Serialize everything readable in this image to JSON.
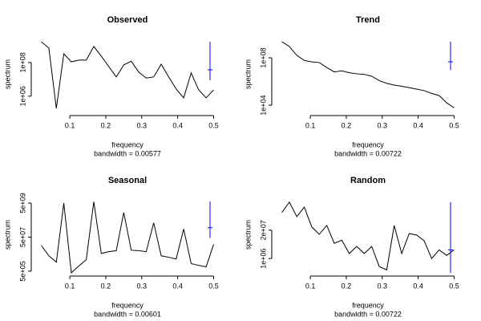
{
  "chart_data": [
    {
      "type": "line",
      "title": "Observed",
      "xlabel": "frequency",
      "ylabel": "spectrum",
      "subtitle": "bandwidth = 0.00577",
      "log_y": true,
      "color": "#000000",
      "x": [
        0.0208,
        0.0417,
        0.0625,
        0.0833,
        0.1042,
        0.125,
        0.1458,
        0.1667,
        0.1875,
        0.2083,
        0.2292,
        0.25,
        0.2708,
        0.2917,
        0.3125,
        0.3333,
        0.3542,
        0.375,
        0.3958,
        0.4167,
        0.4375,
        0.4583,
        0.4792,
        0.5
      ],
      "values": [
        1700000000,
        720000000,
        190000,
        330000000,
        110000000,
        140000000,
        140000000,
        900000000,
        240000000,
        58000000,
        14000000,
        72000000,
        120000000,
        27000000,
        12000000,
        14000000,
        80000000,
        14000000,
        2700000,
        800000,
        24000000,
        2400000,
        800000,
        2400000
      ],
      "xlim": [
        0.0017,
        0.519
      ],
      "xticks": [
        0.1,
        0.2,
        0.3,
        0.4,
        0.5
      ],
      "ylim": [
        110000,
        3700000000
      ],
      "yticks": [
        {
          "value": 1000000,
          "label": "1e+06"
        },
        {
          "value": 100000000,
          "label": "1e+08"
        }
      ],
      "ci": {
        "x": 0.49,
        "lower": 9000000,
        "center": 37000000,
        "upper": 1700000000,
        "color": "#0000ff"
      }
    },
    {
      "type": "line",
      "title": "Trend",
      "xlabel": "frequency",
      "ylabel": "spectrum",
      "subtitle": "bandwidth = 0.00722",
      "log_y": true,
      "color": "#000000",
      "x": [
        0.0208,
        0.0417,
        0.0625,
        0.0833,
        0.1042,
        0.125,
        0.1458,
        0.1667,
        0.1875,
        0.2083,
        0.2292,
        0.25,
        0.2708,
        0.2917,
        0.3125,
        0.3333,
        0.3542,
        0.375,
        0.3958,
        0.4167,
        0.4375,
        0.4583,
        0.4792,
        0.5
      ],
      "values": [
        2300000000,
        900000000,
        160000000,
        60000000,
        45000000,
        40000000,
        15000000,
        6500000,
        8000000,
        5500000,
        4500000,
        4000000,
        2800000,
        1200000,
        700000,
        500000,
        400000,
        300000,
        230000,
        170000,
        100000,
        65000,
        16000,
        6000
      ],
      "xlim": [
        0.0017,
        0.519
      ],
      "xticks": [
        0.1,
        0.2,
        0.3,
        0.4,
        0.5
      ],
      "ylim": [
        2500,
        6800000000
      ],
      "yticks": [
        {
          "value": 10000,
          "label": "1e+04"
        },
        {
          "value": 100000000,
          "label": "1e+08"
        }
      ],
      "ci": {
        "x": 0.49,
        "lower": 9600000,
        "center": 46000000,
        "upper": 2300000000,
        "color": "#0000ff"
      }
    },
    {
      "type": "line",
      "title": "Seasonal",
      "xlabel": "frequency",
      "ylabel": "spectrum",
      "subtitle": "bandwidth = 0.00601",
      "log_y": true,
      "color": "#000000",
      "x": [
        0.0208,
        0.0417,
        0.0625,
        0.0833,
        0.1042,
        0.125,
        0.1458,
        0.1667,
        0.1875,
        0.2083,
        0.2292,
        0.25,
        0.2708,
        0.2917,
        0.3125,
        0.3333,
        0.3542,
        0.375,
        0.3958,
        0.4167,
        0.4375,
        0.4583,
        0.4792,
        0.5
      ],
      "values": [
        16000000,
        4000000,
        1700000,
        5000000000,
        400000,
        1000000,
        2400000,
        6000000000,
        5500000,
        7000000,
        8000000,
        1400000000,
        8500000,
        8000000,
        7000000,
        350000000,
        4000000,
        3300000,
        2600000,
        150000000,
        1400000,
        1100000,
        900000,
        19000000
      ],
      "xlim": [
        0.0017,
        0.519
      ],
      "xticks": [
        0.1,
        0.2,
        0.3,
        0.4,
        0.5
      ],
      "ylim": [
        400000,
        12000000000
      ],
      "yticks": [
        {
          "value": 500000,
          "label": "5e+05"
        },
        {
          "value": 50000000,
          "label": "5e+07"
        },
        {
          "value": 5000000000,
          "label": "5e+09"
        }
      ],
      "ci": {
        "x": 0.49,
        "lower": 45000000,
        "center": 180000000,
        "upper": 6200000000,
        "color": "#0000ff"
      }
    },
    {
      "type": "line",
      "title": "Random",
      "xlabel": "frequency",
      "ylabel": "spectrum",
      "subtitle": "bandwidth = 0.00722",
      "log_y": true,
      "color": "#000000",
      "x": [
        0.0208,
        0.0417,
        0.0625,
        0.0833,
        0.1042,
        0.125,
        0.1458,
        0.1667,
        0.1875,
        0.2083,
        0.2292,
        0.25,
        0.2708,
        0.2917,
        0.3125,
        0.3333,
        0.3542,
        0.375,
        0.3958,
        0.4167,
        0.4375,
        0.4583,
        0.4792,
        0.5
      ],
      "values": [
        130000000,
        390000000,
        84000000,
        230000000,
        28000000,
        13000000,
        33000000,
        5000000,
        7000000,
        1700000,
        3600000,
        1700000,
        3600000,
        430000,
        300000,
        33000000,
        1700000,
        14000000,
        12000000,
        6500000,
        1000000,
        2500000,
        1400000,
        2500000
      ],
      "xlim": [
        0.0017,
        0.519
      ],
      "xticks": [
        0.1,
        0.2,
        0.3,
        0.4,
        0.5
      ],
      "ylim": [
        220000,
        700000000
      ],
      "yticks": [
        {
          "value": 1000000,
          "label": "1e+06"
        },
        {
          "value": 20000000,
          "label": "2e+07"
        }
      ],
      "ci": {
        "x": 0.49,
        "lower": 220000,
        "center": 2500000,
        "upper": 390000000,
        "color": "#0000ff"
      }
    }
  ]
}
